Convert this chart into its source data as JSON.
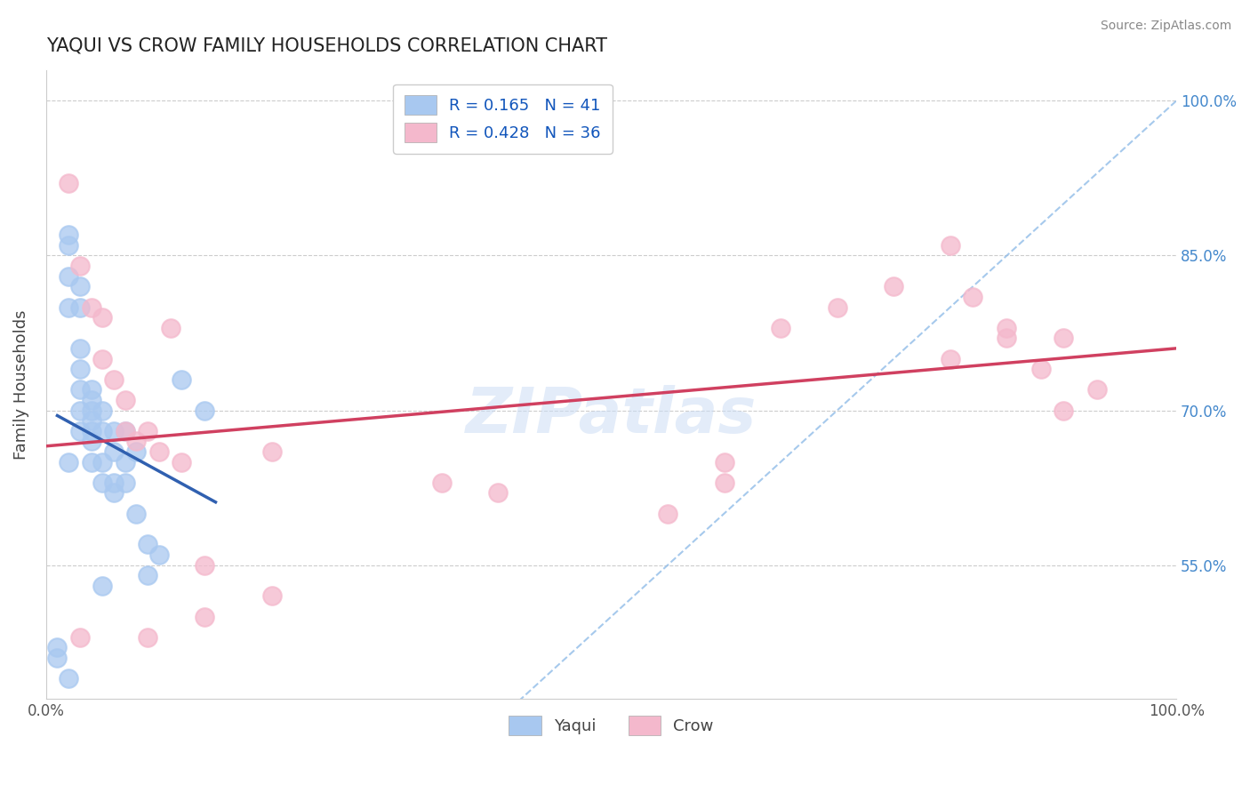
{
  "title": "YAQUI VS CROW FAMILY HOUSEHOLDS CORRELATION CHART",
  "source": "Source: ZipAtlas.com",
  "xlabel": "",
  "ylabel": "Family Households",
  "xlim": [
    0.0,
    1.0
  ],
  "ylim": [
    0.42,
    1.03
  ],
  "yticks": [
    0.55,
    0.7,
    0.85,
    1.0
  ],
  "ytick_labels": [
    "55.0%",
    "70.0%",
    "85.0%",
    "100.0%"
  ],
  "xtick_labels": [
    "0.0%",
    "100.0%"
  ],
  "yaqui_color": "#a8c8f0",
  "crow_color": "#f4b8cc",
  "yaqui_line_color": "#3060b0",
  "crow_line_color": "#d04060",
  "dashed_line_color": "#90bce8",
  "R_yaqui": 0.165,
  "N_yaqui": 41,
  "R_crow": 0.428,
  "N_crow": 36,
  "yaqui_x": [
    0.01,
    0.02,
    0.02,
    0.02,
    0.02,
    0.02,
    0.03,
    0.03,
    0.03,
    0.03,
    0.03,
    0.03,
    0.04,
    0.04,
    0.04,
    0.04,
    0.04,
    0.04,
    0.05,
    0.05,
    0.05,
    0.05,
    0.06,
    0.06,
    0.06,
    0.06,
    0.07,
    0.07,
    0.07,
    0.08,
    0.08,
    0.09,
    0.09,
    0.1,
    0.12,
    0.14,
    0.01,
    0.02,
    0.03,
    0.04,
    0.05
  ],
  "yaqui_y": [
    0.47,
    0.87,
    0.86,
    0.83,
    0.8,
    0.44,
    0.82,
    0.8,
    0.76,
    0.74,
    0.72,
    0.7,
    0.72,
    0.71,
    0.7,
    0.69,
    0.68,
    0.67,
    0.7,
    0.68,
    0.65,
    0.63,
    0.68,
    0.66,
    0.63,
    0.62,
    0.68,
    0.65,
    0.63,
    0.66,
    0.6,
    0.57,
    0.54,
    0.56,
    0.73,
    0.7,
    0.46,
    0.65,
    0.68,
    0.65,
    0.53
  ],
  "crow_x": [
    0.02,
    0.03,
    0.04,
    0.05,
    0.06,
    0.07,
    0.08,
    0.09,
    0.1,
    0.11,
    0.12,
    0.14,
    0.2,
    0.35,
    0.4,
    0.55,
    0.6,
    0.65,
    0.7,
    0.75,
    0.8,
    0.82,
    0.85,
    0.88,
    0.9,
    0.93,
    0.03,
    0.05,
    0.07,
    0.09,
    0.14,
    0.2,
    0.6,
    0.8,
    0.85,
    0.9
  ],
  "crow_y": [
    0.92,
    0.84,
    0.8,
    0.79,
    0.73,
    0.71,
    0.67,
    0.68,
    0.66,
    0.78,
    0.65,
    0.5,
    0.66,
    0.63,
    0.62,
    0.6,
    0.63,
    0.78,
    0.8,
    0.82,
    0.86,
    0.81,
    0.77,
    0.74,
    0.7,
    0.72,
    0.48,
    0.75,
    0.68,
    0.48,
    0.55,
    0.52,
    0.65,
    0.75,
    0.78,
    0.77
  ],
  "watermark": "ZIPatlas",
  "background_color": "#ffffff",
  "grid_color": "#cccccc"
}
